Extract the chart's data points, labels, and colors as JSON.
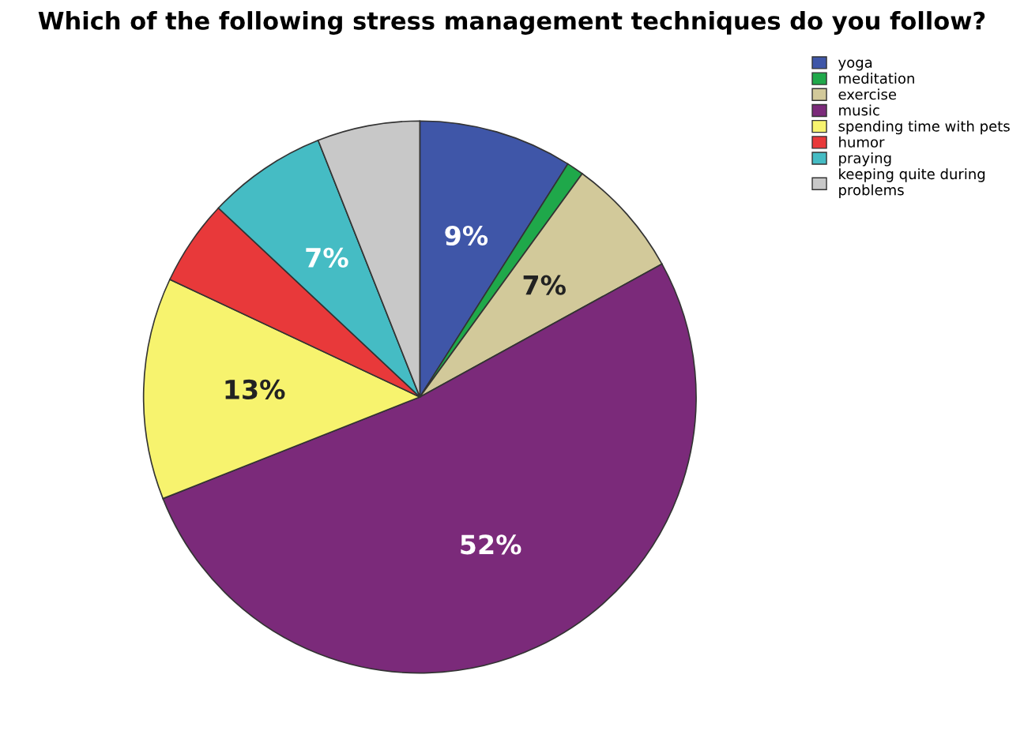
{
  "chart_data": {
    "type": "pie",
    "title": "Which of the following stress management techniques do you follow?",
    "categories": [
      "yoga",
      "meditation",
      "exercise",
      "music",
      "spending time with pets",
      "humor",
      "praying",
      "keeping quite during\nproblems"
    ],
    "values": [
      9,
      1,
      7,
      52,
      13,
      5,
      7,
      6
    ],
    "value_labels": [
      "9%",
      null,
      "7%",
      "52%",
      "13%",
      null,
      "7%",
      null
    ],
    "colors": [
      "#3f56a8",
      "#1fa84a",
      "#d2c99a",
      "#7b2a7a",
      "#f7f36e",
      "#e8393a",
      "#45bcc4",
      "#c8c8c8"
    ],
    "legend": "top right"
  }
}
